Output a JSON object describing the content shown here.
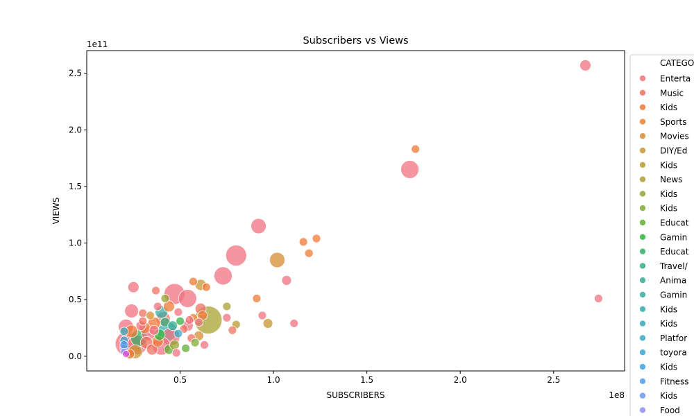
{
  "chart_data": {
    "type": "scatter",
    "title": "Subscribers vs Views",
    "xlabel": "SUBSCRIBERS",
    "ylabel": "VIEWS",
    "x_offset_label": "1e8",
    "y_offset_label": "1e11",
    "xlim": [
      0.0,
      2.88
    ],
    "ylim": [
      -0.13,
      2.7
    ],
    "x_ticks": [
      0.5,
      1.0,
      1.5,
      2.0,
      2.5
    ],
    "x_tick_labels": [
      "0.5",
      "1.0",
      "1.5",
      "2.0",
      "2.5"
    ],
    "y_ticks": [
      0.0,
      0.5,
      1.0,
      1.5,
      2.0,
      2.5
    ],
    "y_tick_labels": [
      "0.0",
      "0.5",
      "1.0",
      "1.5",
      "2.0",
      "2.5"
    ],
    "grid": false,
    "legend": {
      "placement": "right",
      "title": "CATEGO",
      "entries": [
        {
          "label": " Enterta",
          "color": "#f0717f"
        },
        {
          "label": " Music",
          "color": "#f07161"
        },
        {
          "label": " Kids",
          "color": "#ef7a35"
        },
        {
          "label": " Sports",
          "color": "#e58433"
        },
        {
          "label": " Movies",
          "color": "#d68e33"
        },
        {
          "label": " DIY/Ed",
          "color": "#c89632"
        },
        {
          "label": " Kids",
          "color": "#b99c32"
        },
        {
          "label": " News",
          "color": "#a8a132"
        },
        {
          "label": " Kids",
          "color": "#94a632"
        },
        {
          "label": " Kids",
          "color": "#7eab33"
        },
        {
          "label": " Educat",
          "color": "#5faf33"
        },
        {
          "label": " Gamin",
          "color": "#33b341"
        },
        {
          "label": " Educat",
          "color": "#34b068"
        },
        {
          "label": " Travel/",
          "color": "#35ae80"
        },
        {
          "label": " Anima",
          "color": "#36ad92"
        },
        {
          "label": " Gamin",
          "color": "#36aca1"
        },
        {
          "label": " Kids",
          "color": "#37aaae"
        },
        {
          "label": " Kids",
          "color": "#38a9b9"
        },
        {
          "label": " Platfor",
          "color": "#39a8c5"
        },
        {
          "label": " toyora",
          "color": "#3aa6d2"
        },
        {
          "label": " Kids",
          "color": "#3ca3e0"
        },
        {
          "label": " Fitness",
          "color": "#4c9ee9"
        },
        {
          "label": " Kids",
          "color": "#6d97ee"
        },
        {
          "label": " Food",
          "color": "#8d90f0"
        }
      ]
    },
    "points": [
      {
        "x": 2.67,
        "y": 2.57,
        "size": 8,
        "color": "#f0717f"
      },
      {
        "x": 2.74,
        "y": 0.51,
        "size": 6,
        "color": "#f0717f"
      },
      {
        "x": 1.76,
        "y": 1.83,
        "size": 6,
        "color": "#ef7a35"
      },
      {
        "x": 1.73,
        "y": 1.65,
        "size": 13,
        "color": "#f0717f"
      },
      {
        "x": 0.92,
        "y": 1.15,
        "size": 11,
        "color": "#f0717f"
      },
      {
        "x": 0.8,
        "y": 0.89,
        "size": 15,
        "color": "#f0717f"
      },
      {
        "x": 0.73,
        "y": 0.71,
        "size": 13,
        "color": "#f0717f"
      },
      {
        "x": 1.02,
        "y": 0.85,
        "size": 11,
        "color": "#d68e33"
      },
      {
        "x": 1.23,
        "y": 1.04,
        "size": 6,
        "color": "#ef7a35"
      },
      {
        "x": 1.16,
        "y": 1.01,
        "size": 6,
        "color": "#ef7a35"
      },
      {
        "x": 1.19,
        "y": 0.91,
        "size": 6,
        "color": "#ef7a35"
      },
      {
        "x": 1.07,
        "y": 0.67,
        "size": 7,
        "color": "#f0717f"
      },
      {
        "x": 0.91,
        "y": 0.51,
        "size": 6,
        "color": "#ef7a35"
      },
      {
        "x": 0.94,
        "y": 0.36,
        "size": 6,
        "color": "#f0717f"
      },
      {
        "x": 0.97,
        "y": 0.29,
        "size": 7,
        "color": "#c89632"
      },
      {
        "x": 1.11,
        "y": 0.29,
        "size": 6,
        "color": "#f0717f"
      },
      {
        "x": 0.8,
        "y": 0.28,
        "size": 6,
        "color": "#b99c32"
      },
      {
        "x": 0.78,
        "y": 0.23,
        "size": 6,
        "color": "#f07161"
      },
      {
        "x": 0.75,
        "y": 0.44,
        "size": 6,
        "color": "#a8a132"
      },
      {
        "x": 0.75,
        "y": 0.34,
        "size": 6,
        "color": "#f0717f"
      },
      {
        "x": 0.65,
        "y": 0.32,
        "size": 20,
        "color": "#a8a132"
      },
      {
        "x": 0.61,
        "y": 0.63,
        "size": 8,
        "color": "#c89632"
      },
      {
        "x": 0.64,
        "y": 0.61,
        "size": 6,
        "color": "#ef7a35"
      },
      {
        "x": 0.57,
        "y": 0.66,
        "size": 6,
        "color": "#ef7a35"
      },
      {
        "x": 0.54,
        "y": 0.51,
        "size": 13,
        "color": "#f0717f"
      },
      {
        "x": 0.47,
        "y": 0.55,
        "size": 15,
        "color": "#f0717f"
      },
      {
        "x": 0.25,
        "y": 0.61,
        "size": 8,
        "color": "#f0717f"
      },
      {
        "x": 0.37,
        "y": 0.58,
        "size": 6,
        "color": "#f07161"
      },
      {
        "x": 0.42,
        "y": 0.51,
        "size": 6,
        "color": "#94a632"
      },
      {
        "x": 0.38,
        "y": 0.44,
        "size": 6,
        "color": "#f0717f"
      },
      {
        "x": 0.44,
        "y": 0.44,
        "size": 8,
        "color": "#ef7a35"
      },
      {
        "x": 0.24,
        "y": 0.4,
        "size": 10,
        "color": "#f0717f"
      },
      {
        "x": 0.3,
        "y": 0.38,
        "size": 6,
        "color": "#f07161"
      },
      {
        "x": 0.4,
        "y": 0.39,
        "size": 9,
        "color": "#36aca1"
      },
      {
        "x": 0.49,
        "y": 0.39,
        "size": 6,
        "color": "#f0717f"
      },
      {
        "x": 0.61,
        "y": 0.42,
        "size": 8,
        "color": "#f07161"
      },
      {
        "x": 0.62,
        "y": 0.36,
        "size": 7,
        "color": "#ef7a35"
      },
      {
        "x": 0.57,
        "y": 0.34,
        "size": 6,
        "color": "#e58433"
      },
      {
        "x": 0.5,
        "y": 0.31,
        "size": 6,
        "color": "#33b341"
      },
      {
        "x": 0.55,
        "y": 0.32,
        "size": 6,
        "color": "#f0717f"
      },
      {
        "x": 0.6,
        "y": 0.3,
        "size": 6,
        "color": "#f0717f"
      },
      {
        "x": 0.52,
        "y": 0.24,
        "size": 6,
        "color": "#f07161"
      },
      {
        "x": 0.54,
        "y": 0.27,
        "size": 8,
        "color": "#f0717f"
      },
      {
        "x": 0.56,
        "y": 0.16,
        "size": 6,
        "color": "#f07161"
      },
      {
        "x": 0.6,
        "y": 0.18,
        "size": 7,
        "color": "#d68e33"
      },
      {
        "x": 0.58,
        "y": 0.12,
        "size": 6,
        "color": "#7eab33"
      },
      {
        "x": 0.53,
        "y": 0.07,
        "size": 6,
        "color": "#5faf33"
      },
      {
        "x": 0.63,
        "y": 0.1,
        "size": 6,
        "color": "#f0717f"
      },
      {
        "x": 0.48,
        "y": 0.03,
        "size": 6,
        "color": "#f0717f"
      },
      {
        "x": 0.45,
        "y": 0.17,
        "size": 13,
        "color": "#f0717f"
      },
      {
        "x": 0.43,
        "y": 0.22,
        "size": 14,
        "color": "#37aaae"
      },
      {
        "x": 0.4,
        "y": 0.09,
        "size": 13,
        "color": "#f0717f"
      },
      {
        "x": 0.41,
        "y": 0.33,
        "size": 10,
        "color": "#f07161"
      },
      {
        "x": 0.36,
        "y": 0.29,
        "size": 9,
        "color": "#ef7a35"
      },
      {
        "x": 0.33,
        "y": 0.2,
        "size": 10,
        "color": "#f0717f"
      },
      {
        "x": 0.31,
        "y": 0.25,
        "size": 8,
        "color": "#ef7a35"
      },
      {
        "x": 0.28,
        "y": 0.16,
        "size": 12,
        "color": "#34b068"
      },
      {
        "x": 0.27,
        "y": 0.1,
        "size": 14,
        "color": "#f0717f"
      },
      {
        "x": 0.22,
        "y": 0.11,
        "size": 18,
        "color": "#f0717f"
      },
      {
        "x": 0.21,
        "y": 0.26,
        "size": 11,
        "color": "#f0717f"
      },
      {
        "x": 0.24,
        "y": 0.22,
        "size": 9,
        "color": "#ef7a35"
      },
      {
        "x": 0.3,
        "y": 0.31,
        "size": 6,
        "color": "#f07161"
      },
      {
        "x": 0.34,
        "y": 0.36,
        "size": 6,
        "color": "#d68e33"
      },
      {
        "x": 0.26,
        "y": 0.04,
        "size": 10,
        "color": "#c89632"
      },
      {
        "x": 0.23,
        "y": 0.02,
        "size": 7,
        "color": "#ef7a35"
      },
      {
        "x": 0.35,
        "y": 0.06,
        "size": 8,
        "color": "#f07161"
      },
      {
        "x": 0.38,
        "y": 0.13,
        "size": 8,
        "color": "#ef7a35"
      },
      {
        "x": 0.2,
        "y": 0.22,
        "size": 6,
        "color": "#38a9b9"
      },
      {
        "x": 0.2,
        "y": 0.14,
        "size": 6,
        "color": "#3aa6d2"
      },
      {
        "x": 0.2,
        "y": 0.07,
        "size": 6,
        "color": "#6d97ee"
      },
      {
        "x": 0.2,
        "y": 0.04,
        "size": 5,
        "color": "#8d90f0"
      },
      {
        "x": 0.2,
        "y": 0.1,
        "size": 6,
        "color": "#4c9ee9"
      },
      {
        "x": 0.21,
        "y": 0.02,
        "size": 5,
        "color": "#d94bd8"
      },
      {
        "x": 0.42,
        "y": 0.3,
        "size": 7,
        "color": "#35ae80"
      },
      {
        "x": 0.46,
        "y": 0.27,
        "size": 7,
        "color": "#36ad92"
      },
      {
        "x": 0.49,
        "y": 0.2,
        "size": 6,
        "color": "#39a8c5"
      },
      {
        "x": 0.39,
        "y": 0.19,
        "size": 8,
        "color": "#33b341"
      },
      {
        "x": 0.44,
        "y": 0.06,
        "size": 7,
        "color": "#5faf33"
      },
      {
        "x": 0.47,
        "y": 0.1,
        "size": 7,
        "color": "#94a632"
      },
      {
        "x": 0.32,
        "y": 0.12,
        "size": 9,
        "color": "#f07161"
      },
      {
        "x": 0.29,
        "y": 0.27,
        "size": 7,
        "color": "#f0717f"
      },
      {
        "x": 0.36,
        "y": 0.23,
        "size": 7,
        "color": "#f0717f"
      }
    ]
  }
}
